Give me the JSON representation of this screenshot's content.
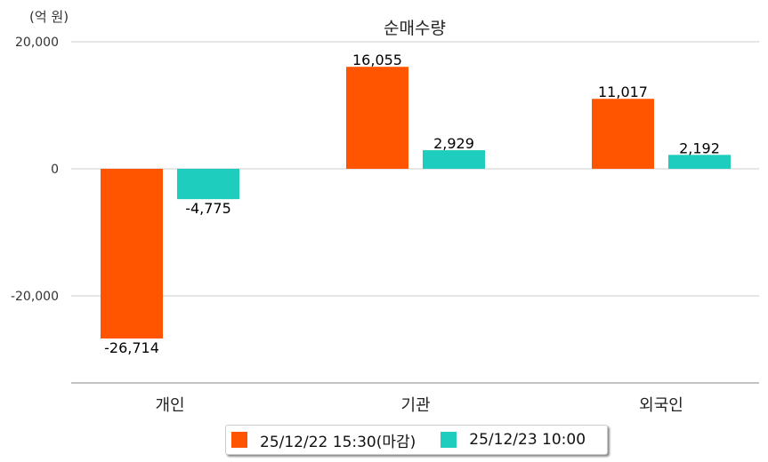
{
  "chart_data": {
    "type": "bar",
    "title": "순매수량",
    "ylabel": "(억 원)",
    "xlabel": "",
    "categories": [
      "개인",
      "기관",
      "외국인"
    ],
    "series": [
      {
        "name": "25/12/22 15:30(마감)",
        "color": "#ff5500",
        "values": [
          -26714,
          16055,
          11017
        ],
        "labels": [
          "-26,714",
          "16,055",
          "11,017"
        ]
      },
      {
        "name": "25/12/23 10:00",
        "color": "#1ecdbd",
        "values": [
          -4775,
          2929,
          2192
        ],
        "labels": [
          "-4,775",
          "2,929",
          "2,192"
        ]
      }
    ],
    "yticks": [
      20000,
      0,
      -20000
    ],
    "ytick_labels": [
      "20,000",
      "0",
      "-20,000"
    ],
    "ylim": [
      -33700,
      20000
    ],
    "grid": true,
    "legend_position": "bottom"
  }
}
